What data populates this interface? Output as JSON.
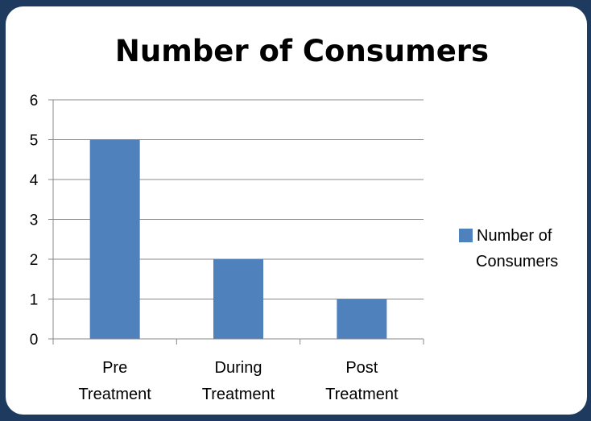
{
  "chart_data": {
    "type": "bar",
    "title": "Number of Consumers",
    "categories": [
      [
        "Pre",
        "Treatment"
      ],
      [
        "During",
        "Treatment"
      ],
      [
        "Post",
        "Treatment"
      ]
    ],
    "series": [
      {
        "name": [
          "Number of",
          "Consumers"
        ],
        "values": [
          5,
          2,
          1
        ],
        "color": "#4f81bd"
      }
    ],
    "ylim": [
      0,
      6
    ],
    "yticks": [
      0,
      1,
      2,
      3,
      4,
      5,
      6
    ],
    "grid": true,
    "legend": "right"
  },
  "colors": {
    "frame": "#1f3a5f",
    "gridline": "#888888",
    "bar": "#4f81bd"
  }
}
